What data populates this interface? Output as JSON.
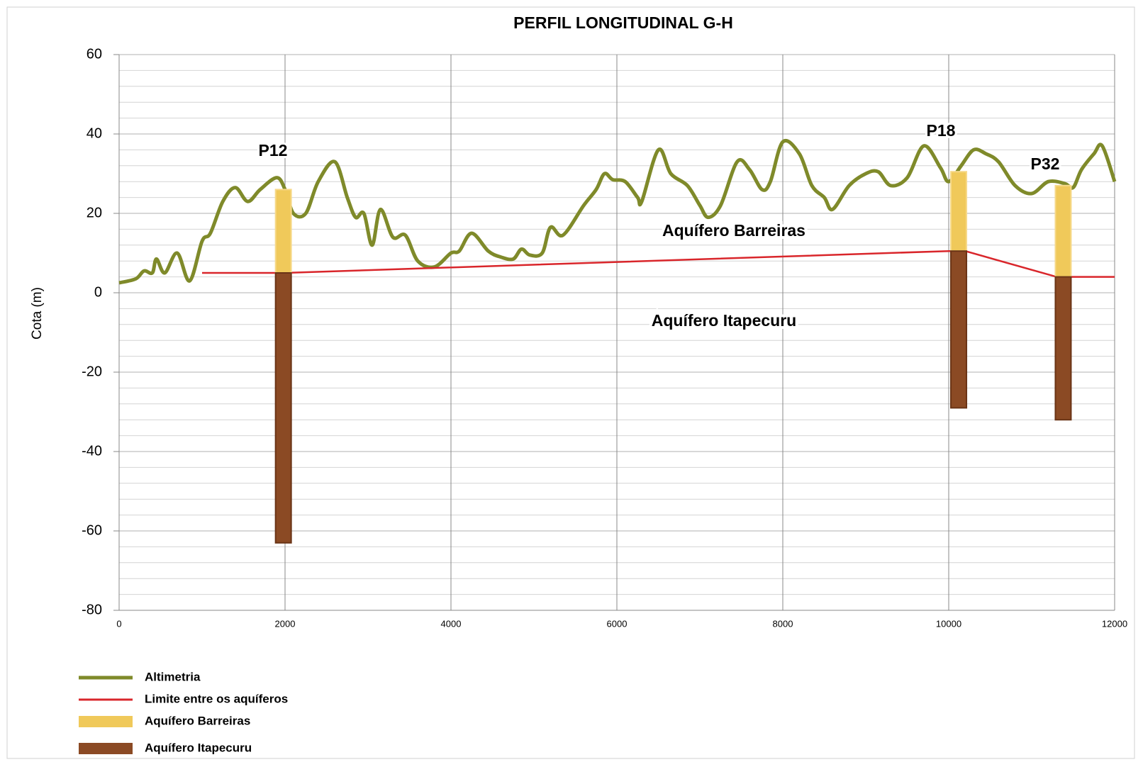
{
  "chart_data": {
    "type": "line",
    "title": "PERFIL LONGITUDINAL G-H",
    "ylabel": "Cota (m)",
    "xlim": [
      0,
      12000
    ],
    "ylim": [
      -80,
      60
    ],
    "xticks": [
      0,
      2000,
      4000,
      6000,
      8000,
      10000,
      12000
    ],
    "yticks": [
      -80,
      -60,
      -40,
      -20,
      0,
      20,
      40,
      60
    ],
    "yminorticks": [
      -76,
      -72,
      -68,
      -64,
      -56,
      -52,
      -48,
      -44,
      -36,
      -32,
      -28,
      -24,
      -16,
      -12,
      -8,
      -4,
      4,
      8,
      12,
      16,
      24,
      28,
      32,
      36,
      44,
      48,
      52,
      56
    ],
    "grid": true,
    "legend": "bottom-left",
    "series": [
      {
        "name": "Altimetria",
        "color": "#7f8a2a",
        "x": [
          0,
          200,
          300,
          400,
          450,
          550,
          700,
          850,
          1000,
          1100,
          1250,
          1400,
          1550,
          1700,
          1900,
          2000,
          2100,
          2250,
          2400,
          2600,
          2750,
          2850,
          2950,
          3050,
          3150,
          3300,
          3450,
          3600,
          3800,
          4000,
          4100,
          4250,
          4450,
          4600,
          4750,
          4850,
          4950,
          5100,
          5200,
          5350,
          5600,
          5750,
          5850,
          5950,
          6100,
          6250,
          6300,
          6500,
          6650,
          6850,
          7000,
          7100,
          7250,
          7450,
          7600,
          7750,
          7850,
          8000,
          8200,
          8350,
          8500,
          8600,
          8800,
          9000,
          9150,
          9300,
          9500,
          9700,
          9900,
          10000,
          10150,
          10300,
          10450,
          10600,
          10800,
          11000,
          11200,
          11400,
          11500,
          11600,
          11750,
          11850,
          12000
        ],
        "values": [
          2.5,
          3.5,
          5.5,
          5,
          8.5,
          5,
          10,
          3,
          13,
          15,
          23,
          26.5,
          23,
          26,
          29,
          26,
          20,
          20,
          28,
          33,
          24,
          19,
          20,
          12,
          21,
          14,
          14.5,
          8,
          6.5,
          10,
          10.5,
          15,
          10.5,
          9,
          8.5,
          11,
          9.5,
          10,
          16.5,
          14.5,
          22,
          26,
          30,
          28.5,
          28,
          24,
          23,
          36,
          30,
          27,
          22,
          19,
          22,
          33,
          31,
          26,
          28,
          38,
          35,
          27,
          24,
          21,
          27,
          30,
          30.5,
          27,
          29,
          37,
          31.5,
          28,
          32,
          36,
          35,
          33,
          27,
          25,
          28,
          27.5,
          26.5,
          31,
          35,
          37,
          28
        ]
      },
      {
        "name": "Limite entre os aquíferos",
        "color": "#d9262b",
        "x": [
          1000,
          2000,
          10000,
          10200,
          11300,
          12000
        ],
        "values": [
          5,
          5,
          10.5,
          10.5,
          4,
          4
        ]
      },
      {
        "name": "Aquífero Barreiras",
        "color": "#f0c95a",
        "top": [
          26,
          30.5,
          27
        ],
        "bottom": [
          5,
          10.5,
          4
        ]
      },
      {
        "name": "Aquífero Itapecuru",
        "color": "#8b4a24",
        "top": [
          5,
          10.5,
          4
        ],
        "bottom": [
          -63,
          -29,
          -32
        ]
      }
    ],
    "wells": {
      "labels": [
        "P12",
        "P18",
        "P32"
      ],
      "x": [
        1980,
        10120,
        11380
      ]
    },
    "annotations": [
      "Aquífero Barreiras",
      "Aquífero Itapecuru"
    ]
  }
}
